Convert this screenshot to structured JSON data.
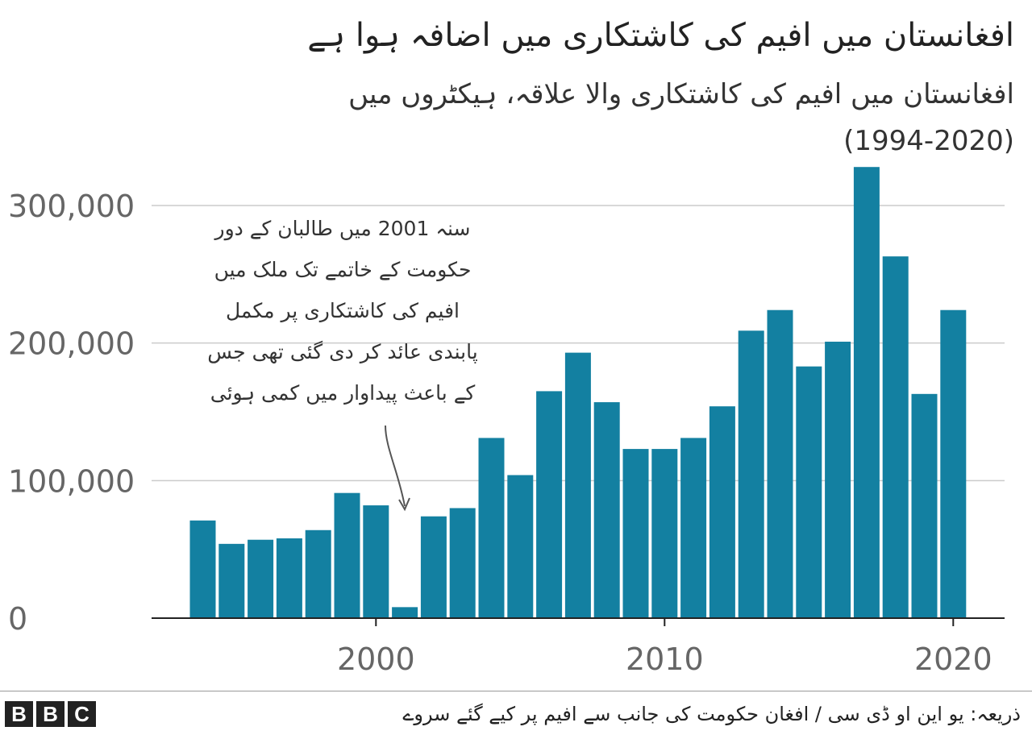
{
  "title": "افغانستان میں افیم کی کاشتکاری میں اضافہ ہوا ہے",
  "subtitle_line1": "افغانستان میں افیم کی کاشتکاری والا علاقہ، ہیکٹروں میں",
  "subtitle_line2": "(1994-2020)",
  "source": "ذریعہ: یو این او ڈی سی / افغان حکومت کی جانب سے افیم پر کیے گئے سروے",
  "logo": [
    "B",
    "B",
    "C"
  ],
  "annotation_lines": [
    "سنہ 2001 میں طالبان کے دور",
    "حکومت کے خاتمے تک ملک میں",
    "افیم کی کاشتکاری پر مکمل",
    "پابندی عائد کر دی گئی تھی جس",
    "کے باعث پیداوار میں کمی ہوئی"
  ],
  "colors": {
    "bar": "#1380A1",
    "grid": "#cbcbcb",
    "axis": "#222222",
    "text": "#666666"
  },
  "chart_data": {
    "type": "bar",
    "title": "افغانستان میں افیم کی کاشتکاری میں اضافہ ہوا ہے",
    "xlabel": "",
    "ylabel": "",
    "categories": [
      1994,
      1995,
      1996,
      1997,
      1998,
      1999,
      2000,
      2001,
      2002,
      2003,
      2004,
      2005,
      2006,
      2007,
      2008,
      2009,
      2010,
      2011,
      2012,
      2013,
      2014,
      2015,
      2016,
      2017,
      2018,
      2019,
      2020
    ],
    "values": [
      71000,
      54000,
      57000,
      58000,
      64000,
      91000,
      82000,
      8000,
      74000,
      80000,
      131000,
      104000,
      165000,
      193000,
      157000,
      123000,
      123000,
      131000,
      154000,
      209000,
      224000,
      183000,
      201000,
      328000,
      263000,
      163000,
      224000
    ],
    "ylim": [
      0,
      330000
    ],
    "yticks": [
      0,
      100000,
      200000,
      300000
    ],
    "ytick_labels": [
      "0",
      "100,000",
      "200,000",
      "300,000"
    ],
    "xticks": [
      2000,
      2010,
      2020
    ],
    "xtick_labels": [
      "2000",
      "2010",
      "2020"
    ],
    "grid": true
  }
}
